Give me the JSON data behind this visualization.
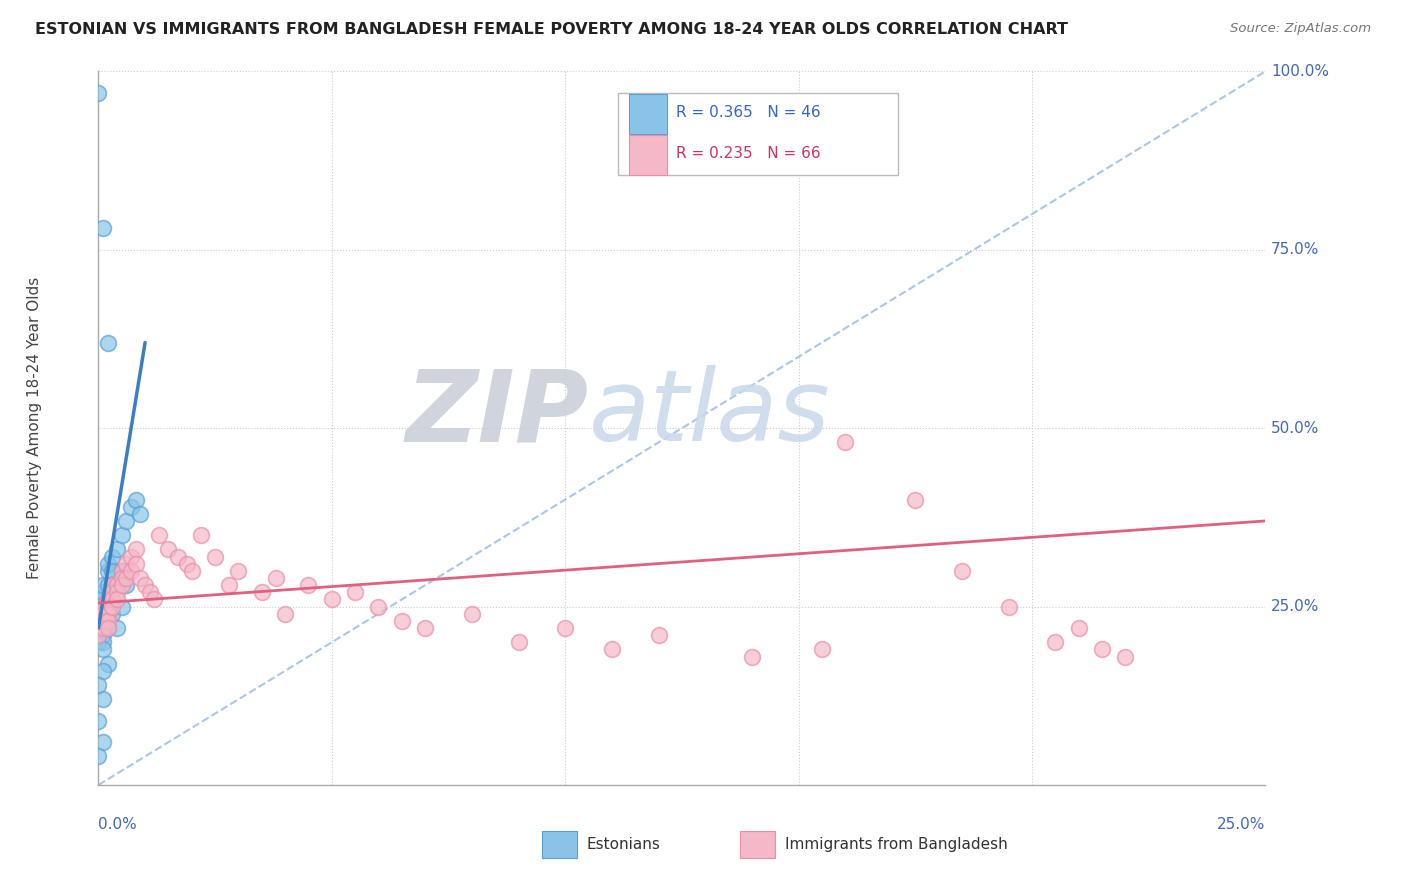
{
  "title": "ESTONIAN VS IMMIGRANTS FROM BANGLADESH FEMALE POVERTY AMONG 18-24 YEAR OLDS CORRELATION CHART",
  "source": "Source: ZipAtlas.com",
  "ylabel_axis": "Female Poverty Among 18-24 Year Olds",
  "legend_blue": "R = 0.365   N = 46",
  "legend_pink": "R = 0.235   N = 66",
  "legend_label_blue": "Estonians",
  "legend_label_pink": "Immigrants from Bangladesh",
  "watermark_zip": "ZIP",
  "watermark_atlas": "atlas",
  "blue_scatter_color": "#89c4e8",
  "blue_scatter_edge": "#5a9fd4",
  "pink_scatter_color": "#f4b8c8",
  "pink_scatter_edge": "#e890a8",
  "blue_line_color": "#3a7fc1",
  "pink_line_color": "#e06080",
  "ref_line_color": "#99b8dd",
  "xlim": [
    0.0,
    0.25
  ],
  "ylim": [
    0.0,
    1.0
  ],
  "blue_x": [
    0.0,
    0.0,
    0.0,
    0.0,
    0.001,
    0.001,
    0.001,
    0.001,
    0.001,
    0.001,
    0.001,
    0.001,
    0.001,
    0.001,
    0.002,
    0.002,
    0.002,
    0.002,
    0.002,
    0.002,
    0.002,
    0.003,
    0.003,
    0.003,
    0.003,
    0.003,
    0.004,
    0.004,
    0.004,
    0.005,
    0.005,
    0.005,
    0.006,
    0.006,
    0.007,
    0.008,
    0.009,
    0.002,
    0.001,
    0.0,
    0.001,
    0.0,
    0.001,
    0.0,
    0.001,
    0.0
  ],
  "blue_y": [
    0.21,
    0.22,
    0.23,
    0.2,
    0.26,
    0.27,
    0.25,
    0.24,
    0.23,
    0.22,
    0.21,
    0.2,
    0.19,
    0.28,
    0.3,
    0.31,
    0.28,
    0.26,
    0.24,
    0.22,
    0.17,
    0.32,
    0.3,
    0.28,
    0.26,
    0.24,
    0.33,
    0.28,
    0.22,
    0.35,
    0.3,
    0.25,
    0.37,
    0.28,
    0.39,
    0.4,
    0.38,
    0.62,
    0.12,
    0.09,
    0.06,
    0.04,
    0.16,
    0.14,
    0.78,
    0.97
  ],
  "pink_x": [
    0.0,
    0.0,
    0.0,
    0.0,
    0.001,
    0.001,
    0.001,
    0.001,
    0.002,
    0.002,
    0.002,
    0.002,
    0.002,
    0.003,
    0.003,
    0.003,
    0.003,
    0.004,
    0.004,
    0.004,
    0.005,
    0.005,
    0.005,
    0.006,
    0.006,
    0.007,
    0.007,
    0.008,
    0.008,
    0.009,
    0.01,
    0.011,
    0.012,
    0.013,
    0.015,
    0.017,
    0.019,
    0.02,
    0.022,
    0.025,
    0.028,
    0.03,
    0.035,
    0.038,
    0.04,
    0.045,
    0.05,
    0.055,
    0.06,
    0.065,
    0.07,
    0.08,
    0.09,
    0.1,
    0.11,
    0.12,
    0.14,
    0.155,
    0.16,
    0.175,
    0.185,
    0.195,
    0.205,
    0.21,
    0.215,
    0.22
  ],
  "pink_y": [
    0.22,
    0.23,
    0.24,
    0.21,
    0.25,
    0.24,
    0.23,
    0.22,
    0.26,
    0.25,
    0.24,
    0.23,
    0.22,
    0.28,
    0.27,
    0.26,
    0.25,
    0.28,
    0.27,
    0.26,
    0.3,
    0.29,
    0.28,
    0.31,
    0.29,
    0.32,
    0.3,
    0.33,
    0.31,
    0.29,
    0.28,
    0.27,
    0.26,
    0.35,
    0.33,
    0.32,
    0.31,
    0.3,
    0.35,
    0.32,
    0.28,
    0.3,
    0.27,
    0.29,
    0.24,
    0.28,
    0.26,
    0.27,
    0.25,
    0.23,
    0.22,
    0.24,
    0.2,
    0.22,
    0.19,
    0.21,
    0.18,
    0.19,
    0.48,
    0.4,
    0.3,
    0.25,
    0.2,
    0.22,
    0.19,
    0.18
  ]
}
